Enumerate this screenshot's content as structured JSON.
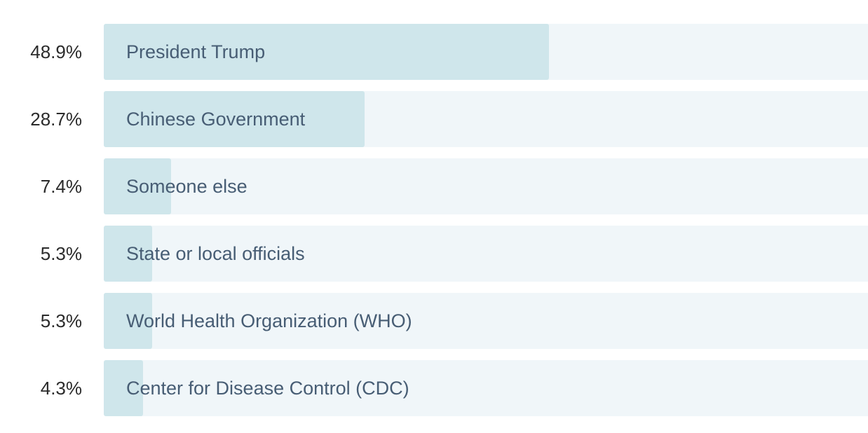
{
  "chart_data": {
    "type": "bar",
    "orientation": "horizontal",
    "categories": [
      "President Trump",
      "Chinese Government",
      "Someone else",
      "State or local officials",
      "World Health Organization (WHO)",
      "Center for Disease Control (CDC)"
    ],
    "values": [
      48.9,
      28.7,
      7.4,
      5.3,
      5.3,
      4.3
    ],
    "value_labels": [
      "48.9%",
      "28.7%",
      "7.4%",
      "5.3%",
      "5.3%",
      "4.3%"
    ],
    "xlim": [
      0,
      84
    ],
    "colors": {
      "fill": "#cfe6eb",
      "track": "#f0f6f9",
      "label_text": "#475d74",
      "value_text": "#2b2b2b"
    }
  }
}
